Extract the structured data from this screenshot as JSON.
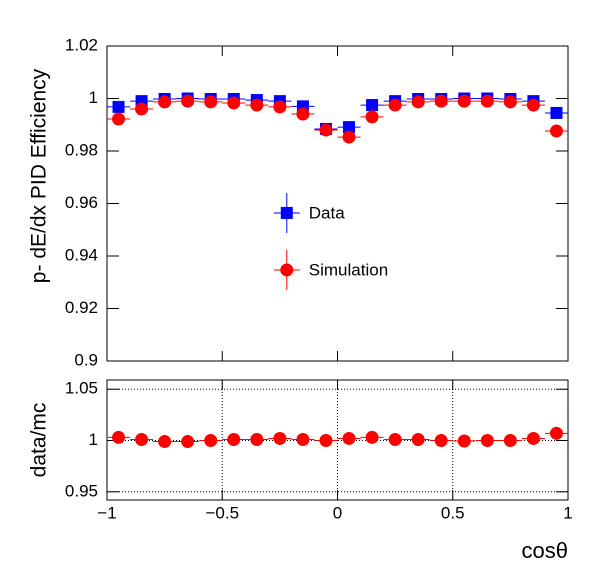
{
  "chart_data": [
    {
      "type": "scatter",
      "y_label": "p- dE/dx PID Efficiency",
      "legend": "center",
      "x": [
        -0.95,
        -0.85,
        -0.75,
        -0.65,
        -0.55,
        -0.45,
        -0.35,
        -0.25,
        -0.15,
        -0.05,
        0.05,
        0.15,
        0.25,
        0.35,
        0.45,
        0.55,
        0.65,
        0.75,
        0.85,
        0.95
      ],
      "series": [
        {
          "name": "Data",
          "color": "#0000ff",
          "marker": "square",
          "values": [
            0.9968,
            0.999,
            0.9998,
            1.0,
            0.9998,
            0.9998,
            0.9994,
            0.999,
            0.997,
            0.9884,
            0.9891,
            0.9975,
            0.999,
            0.9998,
            0.9998,
            1.0,
            1.0,
            0.9998,
            0.999,
            0.9945
          ]
        },
        {
          "name": "Simulation",
          "color": "#ff0000",
          "marker": "circle",
          "values": [
            0.9922,
            0.996,
            0.9987,
            0.999,
            0.9987,
            0.9983,
            0.9975,
            0.9968,
            0.9941,
            0.988,
            0.9853,
            0.993,
            0.9975,
            0.9987,
            0.999,
            0.999,
            0.999,
            0.9987,
            0.9975,
            0.9876
          ]
        }
      ],
      "xlim": [
        -1,
        1
      ],
      "ylim": [
        0.9,
        1.02
      ],
      "yticks": [
        0.9,
        0.92,
        0.94,
        0.96,
        0.98,
        1,
        1.02
      ],
      "grid": false
    },
    {
      "type": "scatter",
      "y_label": "data/mc",
      "x_label": "cosθ",
      "x": [
        -0.95,
        -0.85,
        -0.75,
        -0.65,
        -0.55,
        -0.45,
        -0.35,
        -0.25,
        -0.15,
        -0.05,
        0.05,
        0.15,
        0.25,
        0.35,
        0.45,
        0.55,
        0.65,
        0.75,
        0.85,
        0.95
      ],
      "series": [
        {
          "color": "#ff0000",
          "marker": "circle",
          "values": [
            1.003,
            1.001,
            0.999,
            0.999,
            1.0,
            1.001,
            1.001,
            1.002,
            1.001,
            1.0,
            1.002,
            1.003,
            1.001,
            1.001,
            1.0,
            0.9995,
            1.0,
            1.0,
            1.002,
            1.007
          ]
        }
      ],
      "xlim": [
        -1,
        1
      ],
      "ylim": [
        0.942,
        1.059
      ],
      "yticks": [
        0.95,
        1,
        1.05
      ],
      "xticks": [
        {
          "value": -1,
          "label": "−1"
        },
        {
          "value": -0.5,
          "label": "−0.5"
        },
        0,
        0.5,
        1
      ],
      "grid": true
    }
  ]
}
